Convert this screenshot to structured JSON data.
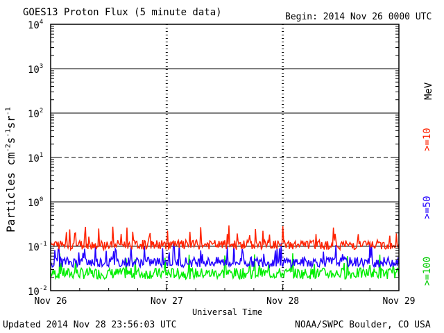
{
  "header": {
    "title": "GOES13 Proton Flux (5 minute data)",
    "begin": "Begin: 2014 Nov 26 0000 UTC"
  },
  "footer": {
    "updated": "Updated 2014 Nov 28 23:56:03 UTC",
    "credit": "NOAA/SWPC Boulder, CO USA"
  },
  "colors": {
    "ge10": "#ff2200",
    "ge50": "#2200ff",
    "ge100": "#00ee00"
  },
  "chart_data": {
    "type": "line",
    "title": "GOES13 Proton Flux (5 minute data)",
    "xlabel": "Universal Time",
    "ylabel_base": "Particles cm",
    "y_scale": "log",
    "ylim": [
      0.01,
      10000
    ],
    "y_ticks": [
      {
        "base": "10",
        "exp": "-2",
        "value": 0.01
      },
      {
        "base": "10",
        "exp": "-1",
        "value": 0.1
      },
      {
        "base": "10",
        "exp": "0",
        "value": 1
      },
      {
        "base": "10",
        "exp": "1",
        "value": 10
      },
      {
        "base": "10",
        "exp": "2",
        "value": 100
      },
      {
        "base": "10",
        "exp": "3",
        "value": 1000
      },
      {
        "base": "10",
        "exp": "4",
        "value": 10000
      }
    ],
    "x_ticks": [
      "Nov 26",
      "Nov 27",
      "Nov 28",
      "Nov 29"
    ],
    "x_range_days": [
      0,
      3
    ],
    "grid": true,
    "legend_unit": "MeV",
    "series": [
      {
        "name": ">=10",
        "color": "#ff2200",
        "typical_value": 0.11,
        "low": 0.075,
        "high": 0.3
      },
      {
        "name": ">=50",
        "color": "#2200ff",
        "typical_value": 0.045,
        "low": 0.03,
        "high": 0.12
      },
      {
        "name": ">=100",
        "color": "#00ee00",
        "typical_value": 0.025,
        "low": 0.016,
        "high": 0.07
      }
    ]
  }
}
